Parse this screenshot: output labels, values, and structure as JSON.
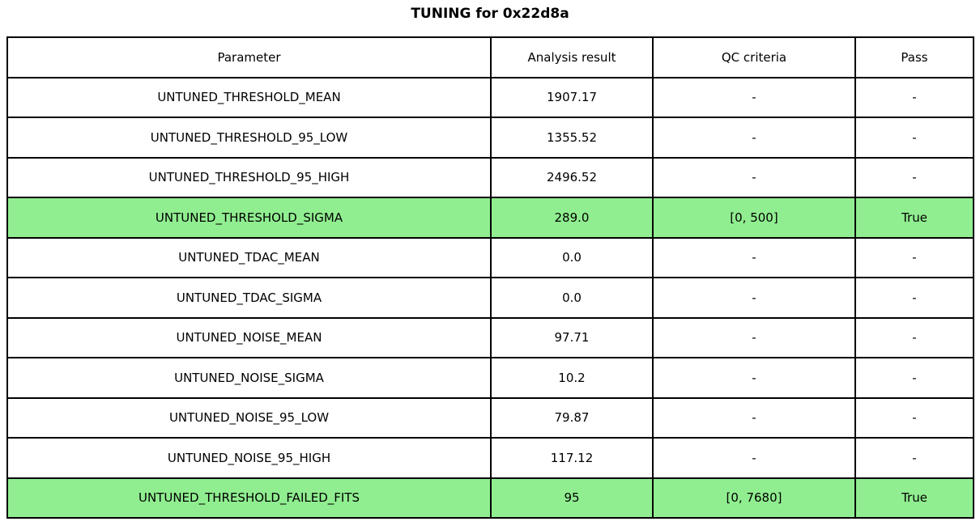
{
  "chart_data": {
    "type": "table",
    "title": "TUNING for 0x22d8a",
    "columns": [
      "Parameter",
      "Analysis result",
      "QC criteria",
      "Pass"
    ],
    "rows": [
      [
        "UNTUNED_THRESHOLD_MEAN",
        "1907.17",
        "-",
        "-"
      ],
      [
        "UNTUNED_THRESHOLD_95_LOW",
        "1355.52",
        "-",
        "-"
      ],
      [
        "UNTUNED_THRESHOLD_95_HIGH",
        "2496.52",
        "-",
        "-"
      ],
      [
        "UNTUNED_THRESHOLD_SIGMA",
        "289.0",
        "[0, 500]",
        "True"
      ],
      [
        "UNTUNED_TDAC_MEAN",
        "0.0",
        "-",
        "-"
      ],
      [
        "UNTUNED_TDAC_SIGMA",
        "0.0",
        "-",
        "-"
      ],
      [
        "UNTUNED_NOISE_MEAN",
        "97.71",
        "-",
        "-"
      ],
      [
        "UNTUNED_NOISE_SIGMA",
        "10.2",
        "-",
        "-"
      ],
      [
        "UNTUNED_NOISE_95_LOW",
        "79.87",
        "-",
        "-"
      ],
      [
        "UNTUNED_NOISE_95_HIGH",
        "117.12",
        "-",
        "-"
      ],
      [
        "UNTUNED_THRESHOLD_FAILED_FITS",
        "95",
        "[0, 7680]",
        "True"
      ]
    ],
    "highlighted_rows": [
      3,
      10
    ],
    "highlight_color": "#90EE90",
    "border_color": "#000000",
    "background_color": "#ffffff",
    "layout": {
      "grid": "full-borders",
      "header_row": true
    }
  }
}
